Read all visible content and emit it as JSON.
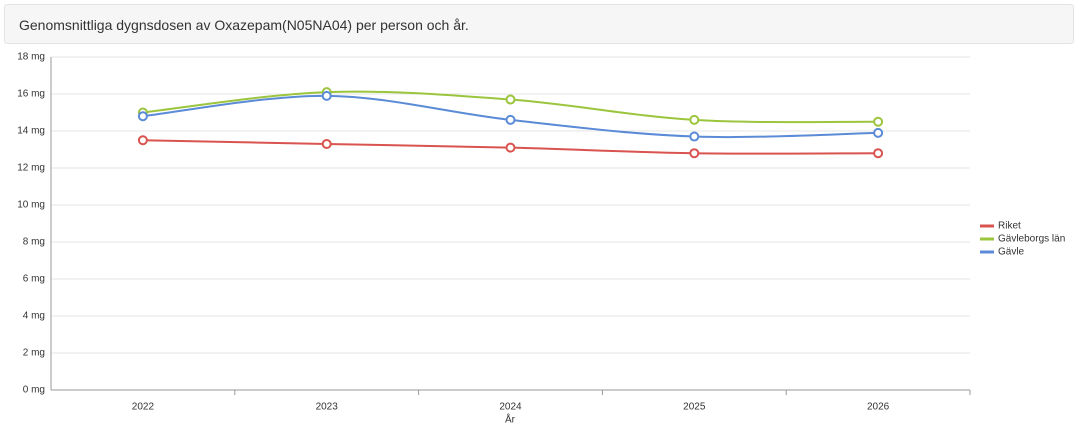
{
  "chart_data": {
    "type": "line",
    "title": "Genomsnittliga dygnsdosen av Oxazepam(N05NA04) per person och år.",
    "x_label": "År",
    "categories": [
      "2022",
      "2023",
      "2024",
      "2025",
      "2026"
    ],
    "series": [
      {
        "name": "Riket",
        "color": "#d9534f",
        "values": [
          13.5,
          13.3,
          13.1,
          12.8,
          12.8
        ]
      },
      {
        "name": "Gävleborgs län",
        "color": "#9bc53d",
        "values": [
          15.0,
          16.1,
          15.7,
          14.6,
          14.5
        ]
      },
      {
        "name": "Gävle",
        "color": "#5b8bd6",
        "values": [
          14.8,
          15.9,
          14.6,
          13.7,
          13.9
        ]
      }
    ],
    "ylim": [
      0,
      18
    ],
    "yticks": [
      {
        "value": 0,
        "label": "0 mg"
      },
      {
        "value": 2,
        "label": "2 mg"
      },
      {
        "value": 4,
        "label": "4 mg"
      },
      {
        "value": 6,
        "label": "6 mg"
      },
      {
        "value": 8,
        "label": "8 mg"
      },
      {
        "value": 10,
        "label": "10 mg"
      },
      {
        "value": 12,
        "label": "12 mg"
      },
      {
        "value": 14,
        "label": "14 mg"
      },
      {
        "value": 16,
        "label": "16 mg"
      },
      {
        "value": 18,
        "label": "18 mg"
      }
    ],
    "grid": true,
    "legend": "right"
  }
}
